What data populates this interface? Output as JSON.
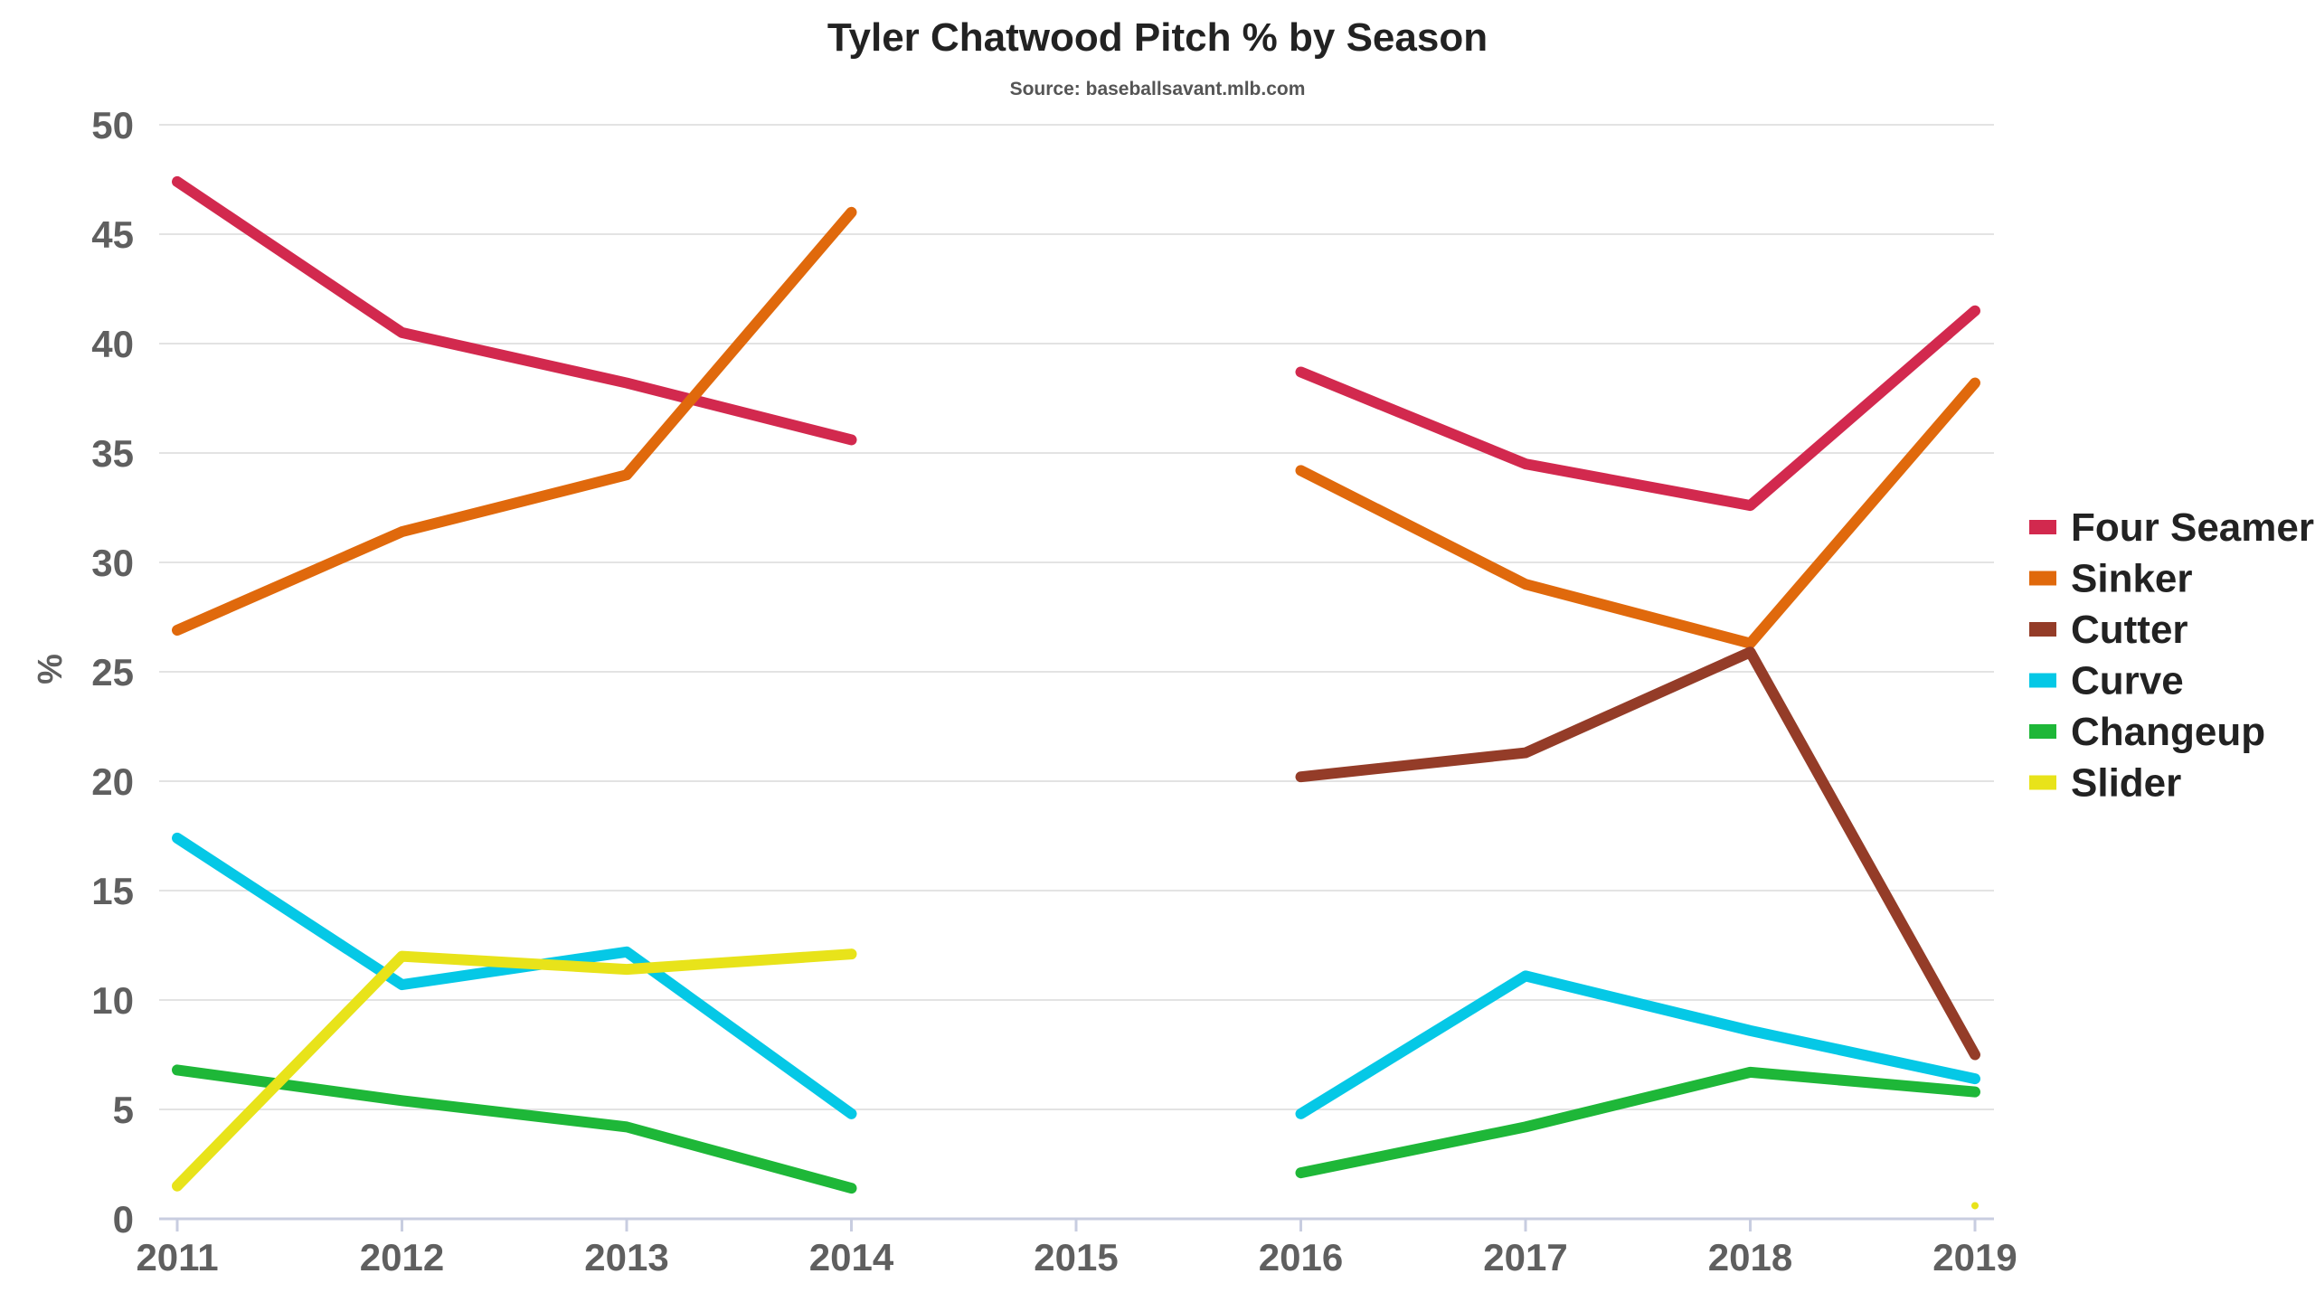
{
  "chart_data": {
    "type": "line",
    "title": "Tyler Chatwood Pitch % by Season",
    "subtitle": "Source: baseballsavant.mlb.com",
    "xlabel": "",
    "ylabel": "%",
    "x": [
      "2011",
      "2012",
      "2013",
      "2014",
      "2015",
      "2016",
      "2017",
      "2018",
      "2019"
    ],
    "ylim": [
      0,
      50
    ],
    "yticks": [
      "0",
      "5",
      "10",
      "15",
      "20",
      "25",
      "30",
      "35",
      "40",
      "45",
      "50"
    ],
    "grid": true,
    "legend_position": "right",
    "series": [
      {
        "name": "Four Seamer",
        "color": "#d2294e",
        "values": [
          47.4,
          40.5,
          38.2,
          35.6,
          null,
          38.7,
          34.5,
          32.6,
          41.5
        ]
      },
      {
        "name": "Sinker",
        "color": "#e0690c",
        "values": [
          26.9,
          31.4,
          34.0,
          46.0,
          null,
          34.2,
          29.0,
          26.3,
          38.2
        ]
      },
      {
        "name": "Cutter",
        "color": "#943c28",
        "values": [
          null,
          null,
          null,
          null,
          null,
          20.2,
          21.3,
          25.9,
          7.5
        ]
      },
      {
        "name": "Curve",
        "color": "#05c8e6",
        "values": [
          17.4,
          10.7,
          12.2,
          4.8,
          null,
          4.8,
          11.1,
          8.6,
          6.4
        ]
      },
      {
        "name": "Changeup",
        "color": "#1eb738",
        "values": [
          6.8,
          5.4,
          4.2,
          1.4,
          null,
          2.1,
          4.2,
          6.7,
          5.8
        ]
      },
      {
        "name": "Slider",
        "color": "#e8e31a",
        "values": [
          1.5,
          12.0,
          11.4,
          12.1,
          null,
          null,
          null,
          null,
          0.6
        ]
      }
    ]
  }
}
